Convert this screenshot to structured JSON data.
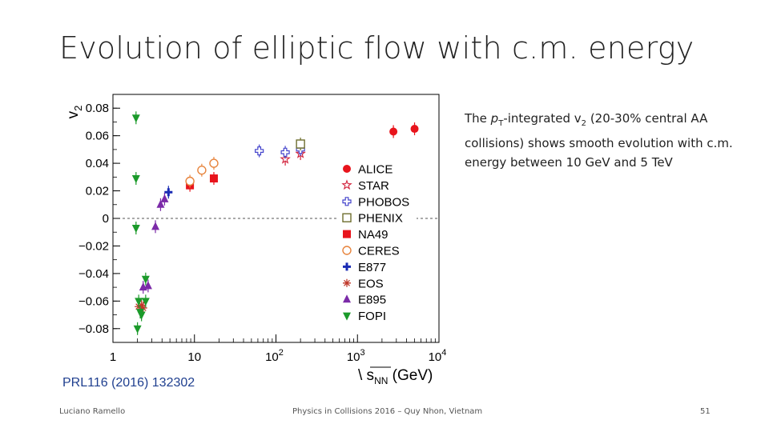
{
  "slide": {
    "title": "Evolution of elliptic flow with c.m. energy",
    "description_parts": [
      "The ",
      "p",
      "T",
      "-integrated v",
      "2",
      " (20-30% central AA collisions) shows smooth evolution with c.m. energy between 10 GeV and 5 TeV"
    ],
    "reference": "PRL116 (2016) 132302",
    "footer_left": "Luciano Ramello",
    "footer_center": "Physics in Collisions 2016 – Quy Nhon, Vietnam",
    "footer_right": "51"
  },
  "chart_data": {
    "type": "scatter",
    "title": "",
    "xlabel_parts": [
      "\\ s",
      "NN",
      " (GeV)"
    ],
    "ylabel_parts": [
      "v",
      "2"
    ],
    "xscale": "log",
    "xlim": [
      1,
      10000
    ],
    "ylim": [
      -0.09,
      0.09
    ],
    "x_ticks": [
      {
        "value": 1,
        "label": "1"
      },
      {
        "value": 10,
        "label": "10"
      },
      {
        "value": 100,
        "label": "10",
        "exp": "2"
      },
      {
        "value": 1000,
        "label": "10",
        "exp": "3"
      },
      {
        "value": 10000,
        "label": "10",
        "exp": "4"
      }
    ],
    "y_ticks": [
      {
        "value": 0.08,
        "label": "0.08"
      },
      {
        "value": 0.06,
        "label": "0.06"
      },
      {
        "value": 0.04,
        "label": "0.04"
      },
      {
        "value": 0.02,
        "label": "0.02"
      },
      {
        "value": 0,
        "label": "0"
      },
      {
        "value": -0.02,
        "label": "−0.02"
      },
      {
        "value": -0.04,
        "label": "−0.04"
      },
      {
        "value": -0.06,
        "label": "−0.06"
      },
      {
        "value": -0.08,
        "label": "−0.08"
      }
    ],
    "zero_line": true,
    "legend_position": "right-center",
    "series": [
      {
        "name": "ALICE",
        "marker": "filled-circle",
        "color": "#e8141c",
        "points": [
          {
            "x": 2760,
            "y": 0.063
          },
          {
            "x": 5020,
            "y": 0.065
          }
        ]
      },
      {
        "name": "STAR",
        "marker": "open-star",
        "color": "#d2233c",
        "points": [
          {
            "x": 130,
            "y": 0.043
          },
          {
            "x": 200,
            "y": 0.047
          }
        ]
      },
      {
        "name": "PHOBOS",
        "marker": "open-cross",
        "color": "#4444cc",
        "points": [
          {
            "x": 62.4,
            "y": 0.049
          },
          {
            "x": 130,
            "y": 0.048
          },
          {
            "x": 200,
            "y": 0.05
          }
        ]
      },
      {
        "name": "PHENIX",
        "marker": "open-square",
        "color": "#6e6e2e",
        "points": [
          {
            "x": 200,
            "y": 0.054
          }
        ]
      },
      {
        "name": "NA49",
        "marker": "filled-square",
        "color": "#e8141c",
        "points": [
          {
            "x": 8.8,
            "y": 0.024
          },
          {
            "x": 17.3,
            "y": 0.029
          }
        ]
      },
      {
        "name": "CERES",
        "marker": "open-circle",
        "color": "#e7843d",
        "points": [
          {
            "x": 8.8,
            "y": 0.027
          },
          {
            "x": 12.3,
            "y": 0.035
          },
          {
            "x": 17.3,
            "y": 0.04
          }
        ]
      },
      {
        "name": "E877",
        "marker": "filled-cross",
        "color": "#1a2bb4",
        "points": [
          {
            "x": 4.8,
            "y": 0.019
          }
        ]
      },
      {
        "name": "EOS",
        "marker": "asterisk",
        "color": "#c0392b",
        "points": [
          {
            "x": 2.07,
            "y": -0.064
          },
          {
            "x": 2.24,
            "y": -0.063
          },
          {
            "x": 2.35,
            "y": -0.065
          }
        ]
      },
      {
        "name": "E895",
        "marker": "filled-triangle-up",
        "color": "#7b2aa8",
        "points": [
          {
            "x": 2.35,
            "y": -0.05
          },
          {
            "x": 2.7,
            "y": -0.049
          },
          {
            "x": 3.32,
            "y": -0.006
          },
          {
            "x": 3.84,
            "y": 0.01
          },
          {
            "x": 4.3,
            "y": 0.014
          }
        ]
      },
      {
        "name": "FOPI",
        "marker": "filled-triangle-down",
        "color": "#1b9a2a",
        "points": [
          {
            "x": 1.92,
            "y": 0.073
          },
          {
            "x": 1.92,
            "y": 0.029
          },
          {
            "x": 1.92,
            "y": -0.007
          },
          {
            "x": 2.07,
            "y": -0.06
          },
          {
            "x": 2.16,
            "y": -0.068
          },
          {
            "x": 2.0,
            "y": -0.08
          },
          {
            "x": 2.24,
            "y": -0.07
          },
          {
            "x": 2.52,
            "y": -0.044
          },
          {
            "x": 2.52,
            "y": -0.06
          }
        ]
      }
    ]
  }
}
